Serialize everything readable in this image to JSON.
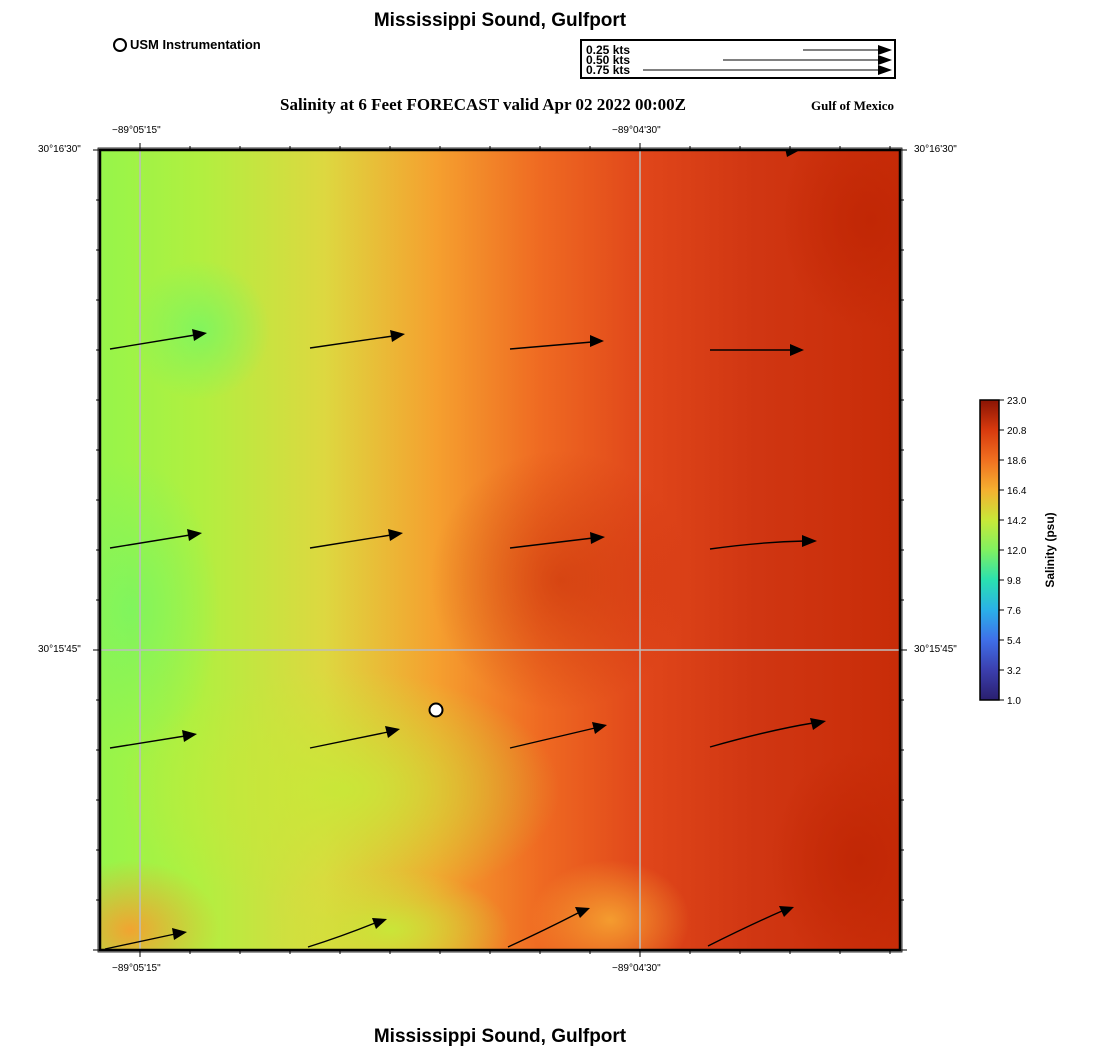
{
  "header": {
    "title": "Mississippi Sound, Gulfport",
    "subtitle": "Salinity at 6 Feet FORECAST valid Apr 02 2022 00:00Z",
    "region": "Gulf of Mexico",
    "footer_title": "Mississippi Sound, Gulfport"
  },
  "legend": {
    "station_label": "USM Instrumentation",
    "vector_scale": [
      "0.25 kts",
      "0.50 kts",
      "0.75 kts"
    ]
  },
  "axes": {
    "lon_top": [
      "−89°05'15\"",
      "−89°04'30\""
    ],
    "lon_bottom": [
      "−89°05'15\"",
      "−89°04'30\""
    ],
    "lat_left": [
      "30°16'30\"",
      "30°15'45\""
    ],
    "lat_right": [
      "30°16'30\"",
      "30°15'45\""
    ]
  },
  "colorbar": {
    "label": "Salinity (psu)",
    "ticks": [
      "23.0",
      "20.8",
      "18.6",
      "16.4",
      "14.2",
      "12.0",
      "9.8",
      "7.6",
      "5.4",
      "3.2",
      "1.0"
    ]
  },
  "colors": {
    "low": "#2a1f6e",
    "mid": "#a8f53c",
    "high": "#bf2000"
  }
}
